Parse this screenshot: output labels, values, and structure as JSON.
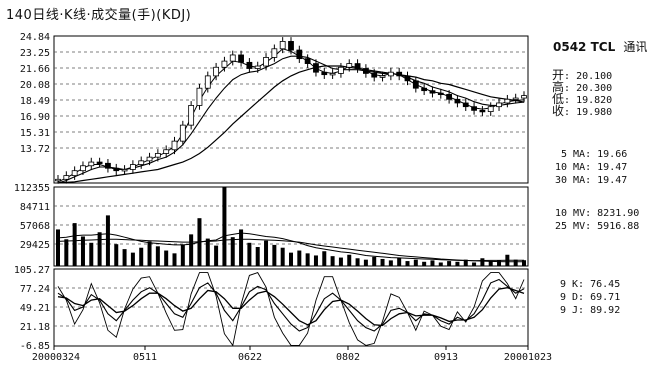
{
  "header": {
    "title": "140日线·K线·成交量(手)(KDJ)"
  },
  "stock": {
    "code": "0542",
    "name": "TCL",
    "suffix": "通讯"
  },
  "ohlc": [
    {
      "label": "开",
      "value": "20.100"
    },
    {
      "label": "高",
      "value": "20.300"
    },
    {
      "label": "低",
      "value": "19.820"
    },
    {
      "label": "收",
      "value": "19.980"
    }
  ],
  "ma": [
    {
      "label": "5 MA:",
      "value": "19.66"
    },
    {
      "label": "10 MA:",
      "value": "19.47"
    },
    {
      "label": "30 MA:",
      "value": "19.47"
    }
  ],
  "mv": [
    {
      "label": "10 MV:",
      "value": "8231.90"
    },
    {
      "label": "25 MV:",
      "value": "5916.88"
    }
  ],
  "kdj": [
    {
      "label": "9 K:",
      "value": "76.45"
    },
    {
      "label": "9 D:",
      "value": "69.71"
    },
    {
      "label": "9 J:",
      "value": "89.92"
    }
  ],
  "chart_data": [
    {
      "type": "line",
      "panel": "price",
      "y_ticks": [
        "24.84",
        "23.25",
        "21.66",
        "20.08",
        "18.49",
        "16.90",
        "15.31",
        "13.72"
      ],
      "ylim": [
        12.9,
        24.84
      ],
      "x_ticks": [
        "20000324",
        "0511",
        "0622",
        "0802",
        "0913",
        "20001023"
      ],
      "grid": true,
      "series": [
        {
          "name": "K",
          "values": [
            13.2,
            13.5,
            13.9,
            14.3,
            14.6,
            14.5,
            14.1,
            13.9,
            14.0,
            14.4,
            14.7,
            15.0,
            15.3,
            15.6,
            16.3,
            17.6,
            19.2,
            20.6,
            21.6,
            22.3,
            22.8,
            23.3,
            22.7,
            22.2,
            22.4,
            23.1,
            23.8,
            24.4,
            23.7,
            23.0,
            22.6,
            21.9,
            21.7,
            21.8,
            22.3,
            22.6,
            22.2,
            21.8,
            21.5,
            21.6,
            21.9,
            21.6,
            21.2,
            20.6,
            20.4,
            20.2,
            20.1,
            19.7,
            19.4,
            19.1,
            18.8,
            18.7,
            19.1,
            19.4,
            19.7,
            19.8,
            20.0
          ]
        },
        {
          "name": "5 MA",
          "values": [
            13.0,
            13.3,
            13.7,
            14.1,
            14.4,
            14.4,
            14.2,
            14.0,
            14.0,
            14.2,
            14.5,
            14.8,
            15.1,
            15.4,
            15.9,
            16.9,
            18.2,
            19.6,
            20.7,
            21.6,
            22.2,
            22.8,
            22.7,
            22.4,
            22.3,
            22.7,
            23.2,
            23.8,
            23.6,
            23.2,
            22.8,
            22.2,
            21.9,
            21.8,
            22.0,
            22.4,
            22.3,
            22.0,
            21.7,
            21.6,
            21.8,
            21.7,
            21.3,
            20.9,
            20.6,
            20.3,
            20.2,
            19.9,
            19.6,
            19.3,
            19.0,
            18.9,
            19.0,
            19.3,
            19.5,
            19.6,
            19.66
          ]
        },
        {
          "name": "10 MA",
          "values": [
            12.9,
            13.1,
            13.4,
            13.7,
            14.0,
            14.2,
            14.2,
            14.1,
            14.0,
            14.1,
            14.3,
            14.5,
            14.8,
            15.0,
            15.4,
            16.0,
            16.9,
            17.9,
            18.9,
            19.8,
            20.6,
            21.3,
            21.7,
            21.9,
            22.0,
            22.3,
            22.6,
            23.0,
            23.2,
            23.2,
            23.1,
            22.8,
            22.5,
            22.2,
            22.1,
            22.1,
            22.1,
            22.0,
            21.9,
            21.8,
            21.8,
            21.7,
            21.5,
            21.2,
            21.0,
            20.7,
            20.5,
            20.3,
            20.0,
            19.8,
            19.5,
            19.3,
            19.2,
            19.2,
            19.3,
            19.4,
            19.47
          ]
        },
        {
          "name": "30 MA",
          "values": [
            12.9,
            12.95,
            13.0,
            13.1,
            13.2,
            13.3,
            13.4,
            13.5,
            13.6,
            13.7,
            13.8,
            13.9,
            14.0,
            14.2,
            14.4,
            14.6,
            14.9,
            15.3,
            15.8,
            16.4,
            17.0,
            17.7,
            18.3,
            18.9,
            19.5,
            20.1,
            20.7,
            21.2,
            21.6,
            21.9,
            22.1,
            22.3,
            22.4,
            22.4,
            22.4,
            22.3,
            22.2,
            22.1,
            22.0,
            21.9,
            21.8,
            21.7,
            21.6,
            21.5,
            21.3,
            21.2,
            21.0,
            20.9,
            20.7,
            20.5,
            20.3,
            20.1,
            19.9,
            19.8,
            19.7,
            19.6,
            19.47
          ]
        }
      ]
    },
    {
      "type": "bar",
      "panel": "volume",
      "y_ticks": [
        "112355",
        "84711",
        "57068",
        "29425"
      ],
      "ylim": [
        0,
        112355
      ],
      "grid": true,
      "values": [
        52000,
        38000,
        61000,
        42000,
        33000,
        48000,
        72000,
        31000,
        24000,
        19000,
        26000,
        35000,
        28000,
        22000,
        18000,
        30000,
        45000,
        68000,
        39000,
        29000,
        112355,
        41000,
        52000,
        33000,
        27000,
        36000,
        30000,
        26000,
        19000,
        22000,
        18000,
        15000,
        21000,
        14000,
        12000,
        16000,
        11000,
        9000,
        13000,
        10000,
        8000,
        12000,
        7000,
        9000,
        6000,
        8000,
        5000,
        7000,
        6000,
        9000,
        5000,
        11000,
        7000,
        8000,
        16000,
        9000,
        8232
      ],
      "series": [
        {
          "name": "10 MV",
          "values": [
            40000,
            41000,
            43000,
            44000,
            44000,
            45000,
            46000,
            44000,
            41000,
            38000,
            35000,
            33000,
            32000,
            31000,
            30000,
            30000,
            31000,
            34000,
            36000,
            37000,
            43000,
            45000,
            47000,
            46000,
            44000,
            42000,
            41000,
            39000,
            36000,
            33000,
            29000,
            26000,
            24000,
            22000,
            20000,
            19000,
            17000,
            15000,
            14000,
            13000,
            12000,
            11500,
            11000,
            10500,
            10000,
            9500,
            9000,
            8500,
            8000,
            7800,
            7500,
            7800,
            7900,
            8000,
            8300,
            8200,
            8232
          ]
        },
        {
          "name": "25 MV",
          "values": [
            35000,
            35500,
            36000,
            36500,
            37000,
            37500,
            38000,
            38000,
            37500,
            37000,
            36500,
            36000,
            35500,
            35000,
            34500,
            34000,
            34000,
            34500,
            35000,
            35500,
            37000,
            37500,
            38000,
            38000,
            37500,
            37000,
            36500,
            36000,
            35000,
            34000,
            32000,
            30000,
            28500,
            27000,
            25500,
            24000,
            22500,
            21000,
            19500,
            18000,
            16500,
            15000,
            14000,
            13000,
            12000,
            11000,
            10000,
            9300,
            8600,
            8000,
            7400,
            7000,
            6600,
            6300,
            6100,
            6000,
            5917
          ]
        }
      ]
    },
    {
      "type": "line",
      "panel": "kdj",
      "y_ticks": [
        "105.27",
        "77.24",
        "49.21",
        "21.18",
        "-6.85"
      ],
      "ylim": [
        -6.85,
        105.27
      ],
      "grid": true,
      "series": [
        {
          "name": "9 K",
          "values": [
            70,
            62,
            45,
            50,
            68,
            60,
            40,
            30,
            45,
            60,
            72,
            78,
            70,
            55,
            40,
            35,
            55,
            78,
            85,
            70,
            45,
            30,
            50,
            72,
            80,
            75,
            55,
            40,
            25,
            15,
            20,
            40,
            62,
            70,
            60,
            45,
            30,
            20,
            15,
            25,
            45,
            48,
            42,
            30,
            40,
            38,
            30,
            25,
            35,
            30,
            40,
            60,
            85,
            90,
            80,
            70,
            76.45
          ]
        },
        {
          "name": "9 D",
          "values": [
            65,
            63,
            55,
            52,
            60,
            62,
            52,
            42,
            44,
            52,
            62,
            70,
            70,
            62,
            52,
            44,
            48,
            62,
            74,
            72,
            62,
            48,
            48,
            60,
            70,
            73,
            65,
            54,
            42,
            30,
            24,
            30,
            46,
            58,
            60,
            54,
            44,
            33,
            24,
            23,
            33,
            40,
            42,
            37,
            38,
            38,
            34,
            29,
            31,
            31,
            35,
            46,
            63,
            76,
            78,
            74,
            69.71
          ]
        },
        {
          "name": "9 J",
          "values": [
            80,
            60,
            25,
            46,
            84,
            56,
            16,
            6,
            47,
            76,
            92,
            94,
            70,
            41,
            16,
            17,
            69,
            100,
            100,
            66,
            11,
            -6,
            54,
            96,
            100,
            79,
            35,
            12,
            -6,
            -6,
            12,
            60,
            94,
            94,
            60,
            27,
            2,
            -6,
            -3,
            29,
            69,
            64,
            42,
            16,
            44,
            38,
            22,
            17,
            43,
            28,
            50,
            88,
            100,
            100,
            84,
            62,
            89.92
          ]
        }
      ]
    }
  ]
}
